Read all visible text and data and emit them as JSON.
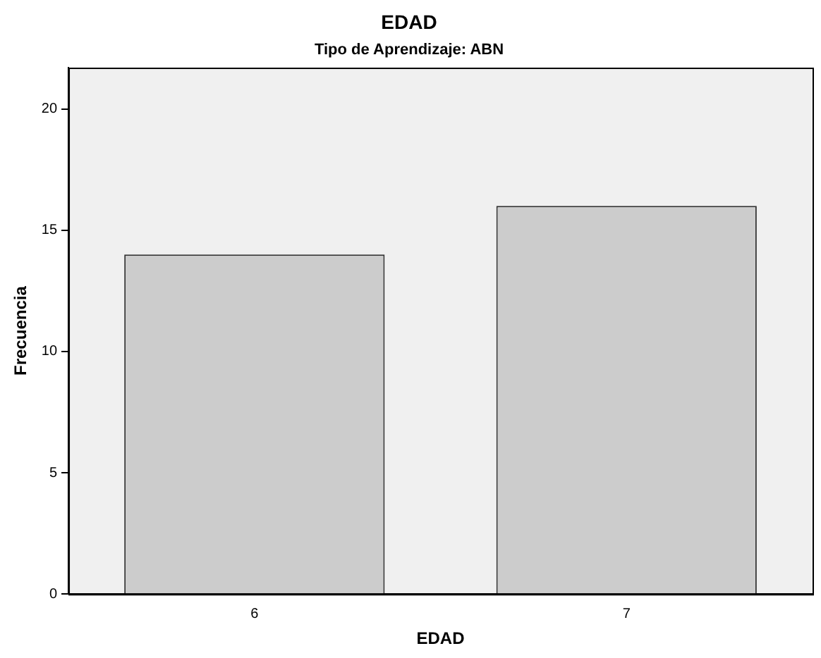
{
  "chart_data": {
    "type": "bar",
    "title": "EDAD",
    "subtitle": "Tipo de Aprendizaje: ABN",
    "xlabel": "EDAD",
    "ylabel": "Frecuencia",
    "categories": [
      "6",
      "7"
    ],
    "values": [
      14,
      16
    ],
    "color": "#cccccc",
    "ylim": [
      0,
      21.7
    ],
    "yticks": [
      0,
      5,
      10,
      15,
      20
    ],
    "grid": false,
    "legend": false
  }
}
